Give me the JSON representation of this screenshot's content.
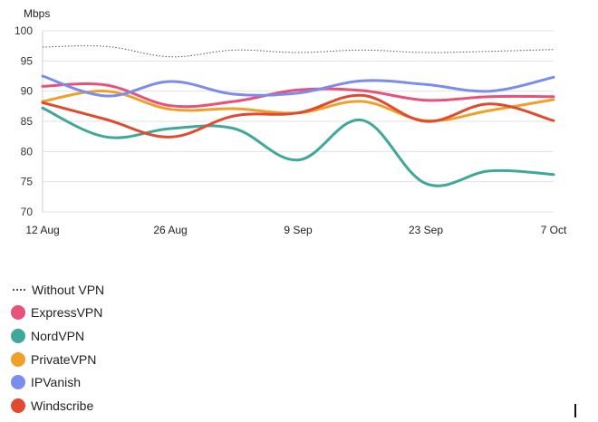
{
  "chart_data": {
    "type": "line",
    "ylabel": "Mbps",
    "ylim": [
      70,
      100
    ],
    "y_ticks": [
      "100",
      "95",
      "90",
      "85",
      "80",
      "75",
      "70"
    ],
    "x_ticks": [
      "12 Aug",
      "26 Aug",
      "9 Sep",
      "23 Sep",
      "7 Oct"
    ],
    "x": [
      "2023-08-12",
      "2023-08-19",
      "2023-08-26",
      "2023-09-02",
      "2023-09-09",
      "2023-09-16",
      "2023-09-23",
      "2023-09-30",
      "2023-10-07"
    ],
    "series": [
      {
        "name": "Without VPN",
        "color": "#555555",
        "style": "dotted",
        "values": [
          97.3,
          97.4,
          95.7,
          96.8,
          96.4,
          96.8,
          96.4,
          96.6,
          96.9
        ]
      },
      {
        "name": "ExpressVPN",
        "color": "#e8527a",
        "values": [
          90.8,
          91.0,
          87.6,
          88.3,
          90.2,
          90.1,
          88.5,
          89.1,
          89.1
        ]
      },
      {
        "name": "NordVPN",
        "color": "#3fa89a",
        "values": [
          87.2,
          82.4,
          83.8,
          83.8,
          78.6,
          85.2,
          74.7,
          76.8,
          76.2
        ]
      },
      {
        "name": "PrivateVPN",
        "color": "#f0a02a",
        "values": [
          88.3,
          90.0,
          87.0,
          87.1,
          86.4,
          88.3,
          85.1,
          86.8,
          88.6
        ]
      },
      {
        "name": "IPVanish",
        "color": "#7b8cec",
        "values": [
          92.5,
          89.2,
          91.6,
          89.5,
          89.7,
          91.7,
          91.1,
          90.0,
          92.3
        ]
      },
      {
        "name": "Windscribe",
        "color": "#e04a2e",
        "values": [
          88.1,
          85.3,
          82.4,
          85.9,
          86.4,
          89.3,
          85.0,
          87.9,
          85.1
        ]
      }
    ]
  }
}
